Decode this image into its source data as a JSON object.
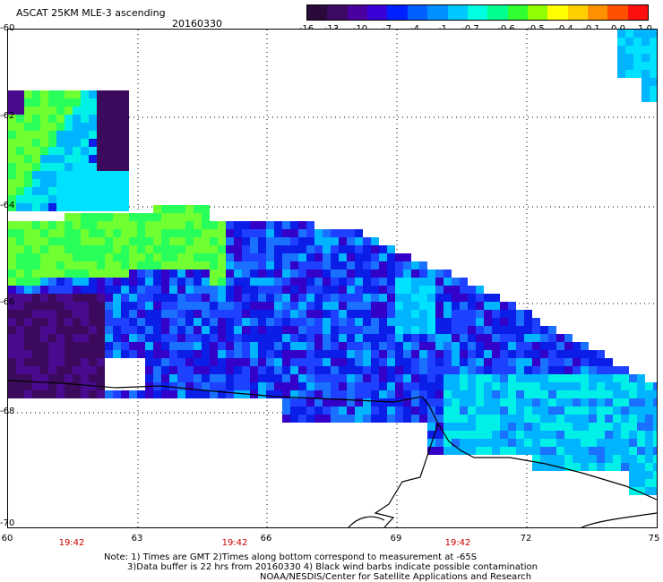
{
  "title": "ASCAT 25KM MLE-3 ascending",
  "date": "20160330",
  "colorbar": {
    "labels": [
      "-16",
      "-13",
      "-10",
      "-7",
      "-4",
      "-1",
      "-0.7",
      "-0.6",
      "-0.5",
      "-0.4",
      "-0.1",
      "0.0",
      "1.0"
    ],
    "colors": [
      "#2a0a3a",
      "#3d0a66",
      "#4b00a0",
      "#3a00d8",
      "#0020ff",
      "#0060ff",
      "#0090ff",
      "#00c8ff",
      "#00ffe0",
      "#00ff90",
      "#30ff30",
      "#90ff00",
      "#ffff00",
      "#ffd000",
      "#ff9000",
      "#ff5000",
      "#ff1010"
    ]
  },
  "map": {
    "lat_labels": [
      "-60",
      "-62",
      "-64",
      "-66",
      "-68",
      "-70"
    ],
    "lon_labels": [
      "60",
      "63",
      "66",
      "69",
      "72",
      "75"
    ],
    "time_labels": [
      "19:42",
      "19:42",
      "19:42"
    ],
    "lon_range": [
      60,
      75
    ],
    "lat_range": [
      -70,
      -60
    ]
  },
  "notes": {
    "line1": "Note: 1) Times are GMT 2)Times along bottom correspond to measurement at -65S",
    "line2": "3)Data buffer is 22 hrs from 20160330 4) Black wind barbs indicate possible contamination",
    "line3": "NOAA/NESDIS/Center for Satellite Applications and Research"
  }
}
